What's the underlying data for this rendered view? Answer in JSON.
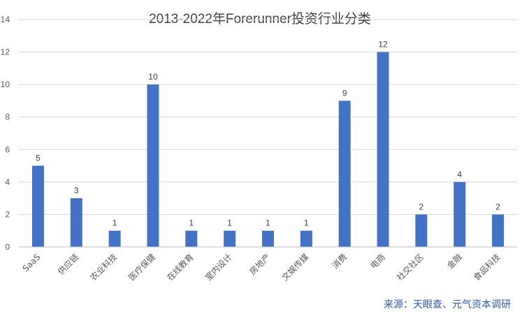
{
  "chart_data": {
    "type": "bar",
    "title": "2013-2022年Forerunner投资行业分类",
    "categories": [
      "SaaS",
      "供应链",
      "农业科技",
      "医疗保健",
      "在线教育",
      "室内设计",
      "房地产",
      "文娱传媒",
      "消费",
      "电商",
      "社交社区",
      "金融",
      "食品科技"
    ],
    "values": [
      5,
      3,
      1,
      10,
      1,
      1,
      1,
      1,
      9,
      12,
      2,
      4,
      2
    ],
    "xlabel": "",
    "ylabel": "",
    "ylim": [
      0,
      14
    ],
    "yticks": [
      "0",
      "2",
      "4",
      "6",
      "8",
      "10",
      "12",
      "14"
    ],
    "grid": true,
    "bar_color": "#4472c4",
    "data_labels": true
  },
  "source_note": "来源：天眼查、元气资本调研"
}
